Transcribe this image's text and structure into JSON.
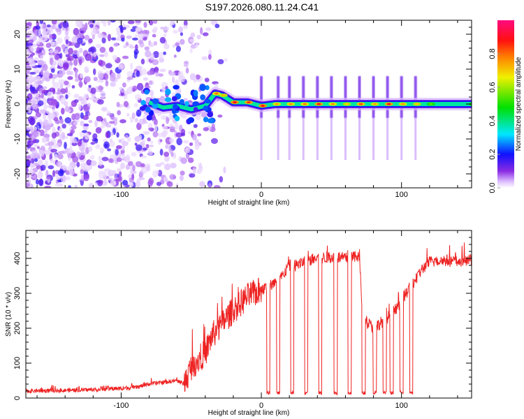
{
  "title": "S197.2026.080.11.24.C41",
  "chart_data": [
    {
      "type": "heatmap",
      "name": "spectrogram",
      "xlabel": "Height of straight line (km)",
      "ylabel": "Frequency (Hz)",
      "xlim": [
        -168,
        150
      ],
      "ylim": [
        -24,
        24
      ],
      "xticks": [
        -100,
        0,
        100
      ],
      "yticks": [
        -20,
        -10,
        0,
        10,
        20
      ],
      "grid": false,
      "colorbar": {
        "label": "Normalized spectral amplitude",
        "range": [
          0,
          1
        ],
        "ticks": [
          0.0,
          0.2,
          0.4,
          0.6,
          0.8
        ],
        "colormap": [
          "#ffffff",
          "#d9b8ff",
          "#8a2be2",
          "#1010ff",
          "#00e8ff",
          "#00e000",
          "#f0f000",
          "#ff8000",
          "#ff0000",
          "#ff0a80"
        ]
      },
      "features": {
        "noise_region_x": [
          -168,
          -55
        ],
        "ridge_points": [
          [
            -80,
            0.5
          ],
          [
            -70,
            -1
          ],
          [
            -60,
            -0.5
          ],
          [
            -50,
            -1.5
          ],
          [
            -40,
            -0.5
          ],
          [
            -33,
            3
          ],
          [
            -28,
            2.5
          ],
          [
            -20,
            0.5
          ],
          [
            -10,
            0.5
          ],
          [
            0,
            -0.5
          ],
          [
            10,
            0
          ],
          [
            20,
            0
          ],
          [
            30,
            0
          ],
          [
            40,
            0
          ],
          [
            50,
            0
          ],
          [
            60,
            0
          ],
          [
            70,
            0
          ],
          [
            80,
            0
          ],
          [
            90,
            0
          ],
          [
            100,
            0
          ],
          [
            110,
            0
          ],
          [
            120,
            0
          ],
          [
            150,
            0
          ]
        ],
        "vertical_streaks_x": [
          0,
          12,
          20,
          30,
          40,
          50,
          60,
          70,
          80,
          90,
          100,
          110
        ]
      }
    },
    {
      "type": "line",
      "name": "snr",
      "xlabel": "Height of straight line (km)",
      "ylabel": "SNR (10 * v/v)",
      "xlim": [
        -168,
        150
      ],
      "ylim": [
        0,
        480
      ],
      "xticks": [
        -100,
        0,
        100
      ],
      "yticks": [
        0,
        100,
        200,
        300,
        400
      ],
      "grid": false,
      "color": "#ee2222",
      "series": [
        {
          "name": "SNR",
          "x": [
            -168,
            -140,
            -120,
            -100,
            -90,
            -80,
            -70,
            -60,
            -55,
            -50,
            -45,
            -40,
            -35,
            -30,
            -25,
            -20,
            -15,
            -10,
            -5,
            0,
            5,
            10,
            15,
            20,
            25,
            30,
            40,
            50,
            60,
            70,
            72,
            75,
            80,
            85,
            90,
            95,
            100,
            105,
            110,
            115,
            120,
            130,
            140,
            150
          ],
          "y": [
            20,
            22,
            24,
            28,
            30,
            40,
            45,
            50,
            40,
            90,
            110,
            130,
            180,
            200,
            230,
            250,
            270,
            290,
            300,
            310,
            320,
            330,
            350,
            380,
            380,
            390,
            400,
            405,
            400,
            405,
            250,
            220,
            200,
            215,
            230,
            250,
            280,
            310,
            340,
            370,
            390,
            395,
            390,
            395
          ]
        }
      ],
      "dropouts": {
        "x": [
          5,
          12,
          22,
          32,
          42,
          53,
          63,
          73,
          81,
          88,
          93,
          100,
          107
        ],
        "value": 10
      }
    }
  ]
}
